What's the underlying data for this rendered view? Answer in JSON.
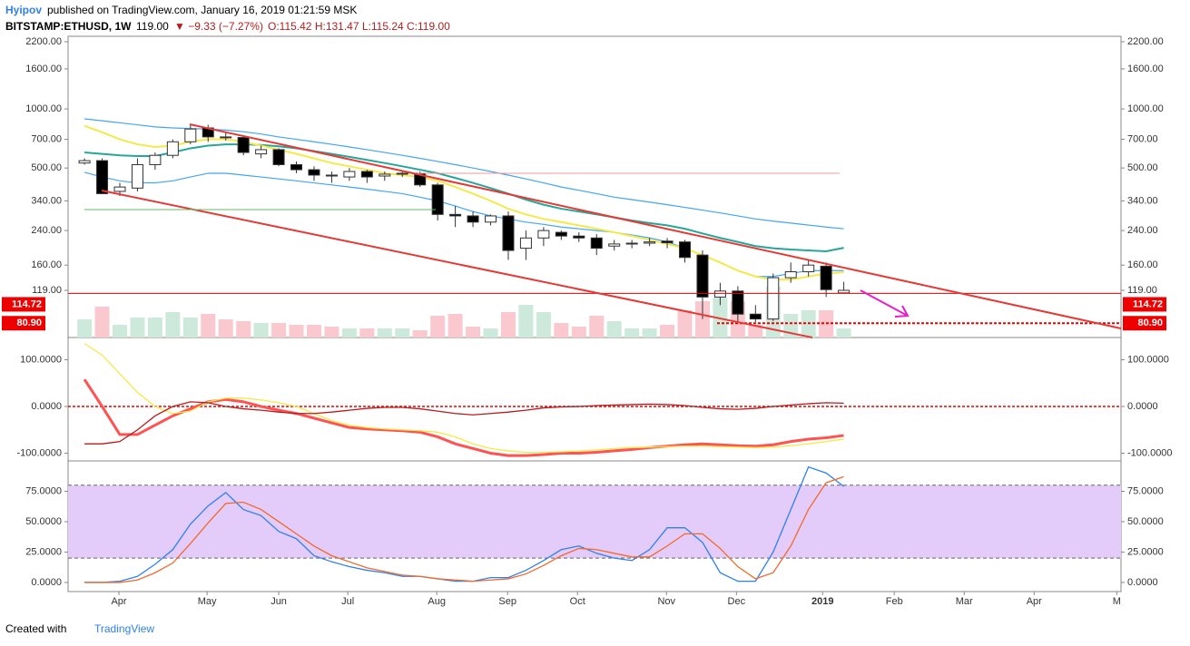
{
  "header": {
    "author": "Hyipov",
    "published": "published on TradingView.com, January 16, 2019 01:21:59 MSK",
    "symbol": "BITSTAMP:ETHUSD, 1W",
    "last": "119.00",
    "change": "▼ −9.33 (−7.27%)",
    "ohlc": "O:115.42 H:131.47 L:115.24 C:119.00"
  },
  "footer": {
    "text": "Created with",
    "brand": "TradingView"
  },
  "chart_data": [
    {
      "type": "candlestick",
      "log_scale": true,
      "ylim": [
        68.4,
        2345
      ],
      "yticks": [
        {
          "value": 2200,
          "label": "2200.00"
        },
        {
          "value": 1600,
          "label": "1600.00"
        },
        {
          "value": 1000,
          "label": "1000.00"
        },
        {
          "value": 700,
          "label": "700.00"
        },
        {
          "value": 500,
          "label": "500.00"
        },
        {
          "value": 340,
          "label": "340.00"
        },
        {
          "value": 240,
          "label": "240.00"
        },
        {
          "value": 160,
          "label": "160.00"
        },
        {
          "value": 119,
          "label": "119.00"
        }
      ],
      "xlim": [
        -0.93,
        58.7
      ],
      "xticks": [
        {
          "value": 1.95,
          "label": "Apr"
        },
        {
          "value": 6.94,
          "label": "May"
        },
        {
          "value": 11.0,
          "label": "Jun"
        },
        {
          "value": 14.91,
          "label": "Jul"
        },
        {
          "value": 19.95,
          "label": "Aug"
        },
        {
          "value": 23.96,
          "label": "Sep"
        },
        {
          "value": 27.92,
          "label": "Oct"
        },
        {
          "value": 32.96,
          "label": "Nov"
        },
        {
          "value": 36.92,
          "label": "Dec"
        },
        {
          "value": 41.8,
          "label": "2019"
        },
        {
          "value": 45.86,
          "label": "Feb"
        },
        {
          "value": 49.82,
          "label": "Mar"
        },
        {
          "value": 53.78,
          "label": "Apr"
        },
        {
          "value": 58.46,
          "label": "M"
        }
      ],
      "open": [
        530,
        545,
        380,
        395,
        520,
        580,
        680,
        800,
        720,
        715,
        590,
        620,
        520,
        490,
        460,
        450,
        480,
        455,
        465,
        470,
        410,
        290,
        285,
        265,
        285,
        195,
        220,
        235,
        225,
        220,
        200,
        205,
        207,
        212,
        210,
        180,
        110,
        118,
        90,
        85,
        138,
        148,
        158,
        115.42
      ],
      "high": [
        560,
        560,
        420,
        560,
        600,
        700,
        830,
        830,
        760,
        730,
        650,
        630,
        540,
        510,
        480,
        500,
        490,
        480,
        480,
        480,
        420,
        320,
        300,
        290,
        300,
        240,
        250,
        240,
        235,
        230,
        215,
        215,
        220,
        220,
        215,
        190,
        130,
        125,
        100,
        145,
        165,
        170,
        165,
        131.47
      ],
      "low": [
        520,
        370,
        360,
        380,
        490,
        560,
        660,
        680,
        690,
        580,
        560,
        510,
        470,
        430,
        420,
        430,
        420,
        430,
        450,
        400,
        270,
        250,
        250,
        255,
        170,
        170,
        200,
        215,
        210,
        180,
        190,
        195,
        200,
        195,
        165,
        85,
        100,
        82,
        82,
        83,
        130,
        140,
        110,
        115.24
      ],
      "close": [
        545,
        370,
        400,
        520,
        580,
        680,
        790,
        720,
        715,
        600,
        620,
        520,
        490,
        460,
        455,
        480,
        450,
        465,
        470,
        410,
        290,
        285,
        265,
        285,
        190,
        220,
        240,
        225,
        220,
        195,
        205,
        207,
        210,
        208,
        175,
        110,
        118,
        90,
        85,
        138,
        148,
        160,
        120,
        119
      ],
      "volume_lim": [
        0,
        100
      ],
      "volume": [
        20,
        34,
        14,
        22,
        22,
        28,
        22,
        26,
        20,
        18,
        16,
        16,
        14,
        14,
        12,
        10,
        10,
        10,
        10,
        8,
        24,
        26,
        12,
        10,
        28,
        36,
        28,
        16,
        12,
        24,
        18,
        10,
        10,
        14,
        30,
        40,
        44,
        40,
        14,
        56,
        26,
        30,
        30,
        10
      ],
      "series": [
        {
          "color": "#42a5f5",
          "values": [
            890,
            870,
            850,
            830,
            810,
            800,
            795,
            790,
            780,
            765,
            745,
            720,
            700,
            680,
            660,
            640,
            620,
            600,
            580,
            560,
            540,
            520,
            500,
            480,
            460,
            440,
            420,
            400,
            385,
            370,
            355,
            345,
            335,
            325,
            315,
            305,
            295,
            285,
            275,
            268,
            262,
            256,
            250,
            245
          ]
        },
        {
          "color": "#42a5f5",
          "values": [
            475,
            450,
            430,
            420,
            420,
            430,
            450,
            470,
            470,
            460,
            450,
            440,
            430,
            420,
            410,
            400,
            390,
            380,
            370,
            355,
            340,
            320,
            300,
            285,
            275,
            265,
            258,
            250,
            245,
            240,
            235,
            228,
            220,
            210,
            195,
            180,
            165,
            150,
            140,
            140,
            145,
            150,
            150,
            150
          ]
        },
        {
          "color": "#26a69a",
          "values": [
            600,
            590,
            580,
            575,
            575,
            600,
            630,
            650,
            660,
            660,
            655,
            645,
            630,
            610,
            590,
            570,
            550,
            530,
            510,
            490,
            470,
            445,
            420,
            395,
            370,
            345,
            325,
            310,
            300,
            290,
            280,
            270,
            262,
            255,
            245,
            232,
            220,
            210,
            200,
            195,
            192,
            190,
            188,
            196
          ]
        },
        {
          "color": "#f5e94a",
          "values": [
            820,
            760,
            700,
            660,
            640,
            650,
            680,
            700,
            700,
            680,
            650,
            620,
            590,
            560,
            530,
            510,
            490,
            470,
            460,
            450,
            430,
            400,
            370,
            340,
            310,
            290,
            275,
            265,
            255,
            245,
            235,
            225,
            215,
            205,
            195,
            180,
            165,
            150,
            140,
            135,
            135,
            140,
            145,
            147
          ]
        }
      ],
      "annotations": [
        {
          "value": 114.72,
          "label": "114.72"
        },
        {
          "value": 80.9,
          "label": "80.90"
        }
      ]
    },
    {
      "type": "line",
      "ylim": [
        -116.5,
        143.7
      ],
      "yticks": [
        {
          "value": 100,
          "label": "100.0000"
        },
        {
          "value": 0,
          "label": "0.0000"
        },
        {
          "value": -100,
          "label": "-100.0000"
        }
      ],
      "hline": 0,
      "series": [
        {
          "color": "#ff5252",
          "values": [
            58,
            0,
            -60,
            -60,
            -40,
            -20,
            -5,
            10,
            15,
            10,
            0,
            -8,
            -15,
            -25,
            -35,
            -45,
            -48,
            -50,
            -52,
            -55,
            -65,
            -80,
            -90,
            -100,
            -105,
            -105,
            -103,
            -100,
            -100,
            -98,
            -95,
            -92,
            -88,
            -85,
            -82,
            -80,
            -82,
            -84,
            -85,
            -82,
            -75,
            -70,
            -67,
            -62
          ]
        },
        {
          "color": "#f5e94a",
          "values": [
            135,
            110,
            70,
            30,
            0,
            -15,
            -10,
            10,
            18,
            18,
            14,
            8,
            0,
            -15,
            -30,
            -40,
            -45,
            -48,
            -50,
            -52,
            -55,
            -65,
            -80,
            -90,
            -95,
            -98,
            -98,
            -97,
            -95,
            -93,
            -90,
            -88,
            -87,
            -86,
            -85,
            -85,
            -86,
            -87,
            -88,
            -87,
            -84,
            -80,
            -75,
            -70
          ]
        },
        {
          "color": "#b71c1c",
          "values": [
            -80,
            -80,
            -75,
            -50,
            -20,
            0,
            10,
            8,
            0,
            -5,
            -8,
            -12,
            -15,
            -15,
            -12,
            -8,
            -4,
            -2,
            -2,
            -5,
            -10,
            -15,
            -18,
            -15,
            -12,
            -8,
            -3,
            -1,
            0,
            2,
            3,
            4,
            5,
            4,
            2,
            -2,
            -5,
            -6,
            -4,
            0,
            3,
            6,
            8,
            7
          ]
        }
      ]
    },
    {
      "type": "line",
      "ylim": [
        -7.5,
        98.5
      ],
      "yticks": [
        {
          "value": 75,
          "label": "75.0000"
        },
        {
          "value": 50,
          "label": "50.0000"
        },
        {
          "value": 25,
          "label": "25.0000"
        },
        {
          "value": 0,
          "label": "0.0000"
        }
      ],
      "band": [
        20,
        80
      ],
      "band_color": "#e3cbfa",
      "series": [
        {
          "color": "#2f80ed",
          "values": [
            0,
            0,
            1,
            5,
            15,
            27,
            48,
            63,
            74,
            60,
            55,
            42,
            36,
            22,
            17,
            13,
            10,
            8,
            5,
            5,
            3,
            1,
            1,
            4,
            4,
            10,
            18,
            27,
            30,
            24,
            20,
            18,
            27,
            45,
            45,
            33,
            8,
            1,
            1,
            25,
            60,
            95,
            90,
            79
          ]
        },
        {
          "color": "#f26a2b",
          "values": [
            0,
            0,
            0,
            2,
            8,
            16,
            32,
            49,
            65,
            66,
            60,
            50,
            40,
            30,
            22,
            17,
            12,
            9,
            6,
            5,
            3,
            2,
            1,
            2,
            3,
            7,
            14,
            22,
            28,
            27,
            24,
            21,
            21,
            30,
            40,
            40,
            28,
            13,
            3,
            8,
            30,
            60,
            82,
            87
          ]
        }
      ]
    }
  ]
}
